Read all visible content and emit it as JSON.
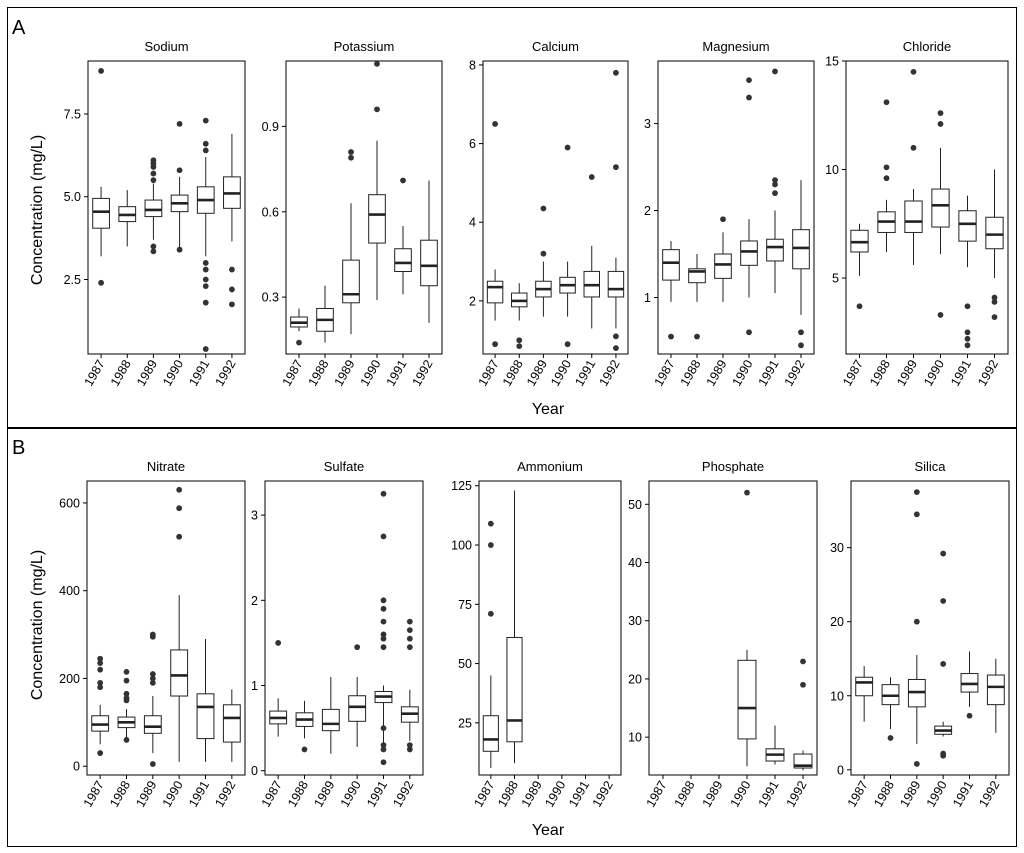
{
  "figure": {
    "panel_a_label": "A",
    "panel_b_label": "B",
    "ylabel": "Concentration (mg/L)",
    "xlabel": "Year"
  },
  "chart_data": [
    {
      "type": "boxplot",
      "panel": "A",
      "title": "Sodium",
      "categories": [
        "1987",
        "1988",
        "1989",
        "1990",
        "1991",
        "1992"
      ],
      "ylim": [
        0.25,
        9.1
      ],
      "yticks": [
        2.5,
        5.0,
        7.5
      ],
      "ytick_labels": [
        "2.5",
        "5.0",
        "7.5"
      ],
      "boxes": [
        {
          "min": 3.2,
          "q1": 4.05,
          "median": 4.55,
          "q3": 4.95,
          "max": 5.3,
          "outliers": [
            8.8,
            2.4
          ]
        },
        {
          "min": 3.5,
          "q1": 4.25,
          "median": 4.45,
          "q3": 4.7,
          "max": 5.2,
          "outliers": []
        },
        {
          "min": 3.7,
          "q1": 4.4,
          "median": 4.6,
          "q3": 4.9,
          "max": 5.4,
          "outliers": [
            6.1,
            6.0,
            5.9,
            5.7,
            5.5,
            3.5,
            3.35
          ]
        },
        {
          "min": 3.45,
          "q1": 4.55,
          "median": 4.8,
          "q3": 5.05,
          "max": 5.6,
          "outliers": [
            7.2,
            5.8,
            3.4
          ]
        },
        {
          "min": 3.2,
          "q1": 4.5,
          "median": 4.9,
          "q3": 5.3,
          "max": 6.2,
          "outliers": [
            7.3,
            6.6,
            6.4,
            3.0,
            2.8,
            2.5,
            2.3,
            1.8,
            0.4
          ]
        },
        {
          "min": 3.65,
          "q1": 4.65,
          "median": 5.1,
          "q3": 5.6,
          "max": 6.9,
          "outliers": [
            2.8,
            2.2,
            1.75
          ]
        }
      ]
    },
    {
      "type": "boxplot",
      "panel": "A",
      "title": "Potassium",
      "categories": [
        "1987",
        "1988",
        "1989",
        "1990",
        "1991",
        "1992"
      ],
      "ylim": [
        0.1,
        1.13
      ],
      "yticks": [
        0.3,
        0.6,
        0.9
      ],
      "ytick_labels": [
        "0.3",
        "0.6",
        "0.9"
      ],
      "boxes": [
        {
          "min": 0.18,
          "q1": 0.195,
          "median": 0.21,
          "q3": 0.23,
          "max": 0.26,
          "outliers": [
            0.14
          ]
        },
        {
          "min": 0.14,
          "q1": 0.18,
          "median": 0.22,
          "q3": 0.26,
          "max": 0.34,
          "outliers": []
        },
        {
          "min": 0.17,
          "q1": 0.28,
          "median": 0.31,
          "q3": 0.43,
          "max": 0.63,
          "outliers": [
            0.81,
            0.79
          ]
        },
        {
          "min": 0.29,
          "q1": 0.49,
          "median": 0.59,
          "q3": 0.66,
          "max": 0.85,
          "outliers": [
            1.12,
            0.96
          ]
        },
        {
          "min": 0.31,
          "q1": 0.39,
          "median": 0.42,
          "q3": 0.47,
          "max": 0.55,
          "outliers": [
            0.71
          ]
        },
        {
          "min": 0.21,
          "q1": 0.34,
          "median": 0.41,
          "q3": 0.5,
          "max": 0.71,
          "outliers": []
        }
      ]
    },
    {
      "type": "boxplot",
      "panel": "A",
      "title": "Calcium",
      "categories": [
        "1987",
        "1988",
        "1989",
        "1990",
        "1991",
        "1992"
      ],
      "ylim": [
        0.65,
        8.1
      ],
      "yticks": [
        2,
        4,
        6,
        8
      ],
      "ytick_labels": [
        "2",
        "4",
        "6",
        "8"
      ],
      "boxes": [
        {
          "min": 1.5,
          "q1": 1.95,
          "median": 2.35,
          "q3": 2.5,
          "max": 2.8,
          "outliers": [
            6.5,
            0.9
          ]
        },
        {
          "min": 1.5,
          "q1": 1.85,
          "median": 2.0,
          "q3": 2.2,
          "max": 2.45,
          "outliers": [
            1.0,
            0.85
          ]
        },
        {
          "min": 1.6,
          "q1": 2.1,
          "median": 2.3,
          "q3": 2.5,
          "max": 3.0,
          "outliers": [
            4.35,
            3.2
          ]
        },
        {
          "min": 1.6,
          "q1": 2.2,
          "median": 2.4,
          "q3": 2.6,
          "max": 3.0,
          "outliers": [
            5.9,
            0.9
          ]
        },
        {
          "min": 1.3,
          "q1": 2.1,
          "median": 2.4,
          "q3": 2.75,
          "max": 3.4,
          "outliers": [
            5.15
          ]
        },
        {
          "min": 1.3,
          "q1": 2.1,
          "median": 2.3,
          "q3": 2.75,
          "max": 3.1,
          "outliers": [
            7.8,
            5.4,
            1.1,
            0.8
          ]
        }
      ]
    },
    {
      "type": "boxplot",
      "panel": "A",
      "title": "Magnesium",
      "categories": [
        "1987",
        "1988",
        "1989",
        "1990",
        "1991",
        "1992"
      ],
      "ylim": [
        0.35,
        3.72
      ],
      "yticks": [
        1,
        2,
        3
      ],
      "ytick_labels": [
        "1",
        "2",
        "3"
      ],
      "boxes": [
        {
          "min": 0.95,
          "q1": 1.2,
          "median": 1.4,
          "q3": 1.55,
          "max": 1.65,
          "outliers": [
            0.55
          ]
        },
        {
          "min": 0.95,
          "q1": 1.17,
          "median": 1.3,
          "q3": 1.33,
          "max": 1.5,
          "outliers": [
            0.55
          ]
        },
        {
          "min": 0.95,
          "q1": 1.22,
          "median": 1.38,
          "q3": 1.5,
          "max": 1.75,
          "outliers": [
            1.9
          ]
        },
        {
          "min": 1.0,
          "q1": 1.37,
          "median": 1.53,
          "q3": 1.65,
          "max": 1.9,
          "outliers": [
            3.5,
            3.3,
            0.6
          ]
        },
        {
          "min": 1.05,
          "q1": 1.42,
          "median": 1.58,
          "q3": 1.67,
          "max": 2.0,
          "outliers": [
            3.6,
            2.35,
            2.3,
            2.2
          ]
        },
        {
          "min": 0.8,
          "q1": 1.33,
          "median": 1.57,
          "q3": 1.78,
          "max": 2.35,
          "outliers": [
            0.6,
            0.45
          ]
        }
      ]
    },
    {
      "type": "boxplot",
      "panel": "A",
      "title": "Chloride",
      "categories": [
        "1987",
        "1988",
        "1989",
        "1990",
        "1991",
        "1992"
      ],
      "ylim": [
        1.5,
        15.0
      ],
      "yticks": [
        5,
        10,
        15
      ],
      "ytick_labels": [
        "5",
        "10",
        "15"
      ],
      "boxes": [
        {
          "min": 5.1,
          "q1": 6.2,
          "median": 6.65,
          "q3": 7.2,
          "max": 7.5,
          "outliers": [
            3.7
          ]
        },
        {
          "min": 6.2,
          "q1": 7.1,
          "median": 7.6,
          "q3": 8.05,
          "max": 8.6,
          "outliers": [
            13.1,
            10.1,
            9.6
          ]
        },
        {
          "min": 5.6,
          "q1": 7.1,
          "median": 7.6,
          "q3": 8.55,
          "max": 9.1,
          "outliers": [
            14.5,
            11.0
          ]
        },
        {
          "min": 6.1,
          "q1": 7.35,
          "median": 8.35,
          "q3": 9.1,
          "max": 11.0,
          "outliers": [
            12.6,
            12.1,
            3.3
          ]
        },
        {
          "min": 5.5,
          "q1": 6.7,
          "median": 7.5,
          "q3": 8.1,
          "max": 8.8,
          "outliers": [
            3.7,
            2.5,
            2.2,
            1.9
          ]
        },
        {
          "min": 5.0,
          "q1": 6.35,
          "median": 7.0,
          "q3": 7.8,
          "max": 10.0,
          "outliers": [
            4.1,
            3.9,
            3.2
          ]
        }
      ]
    },
    {
      "type": "boxplot",
      "panel": "B",
      "title": "Nitrate",
      "categories": [
        "1987",
        "1988",
        "1989",
        "1990",
        "1991",
        "1992"
      ],
      "ylim": [
        -20,
        650
      ],
      "yticks": [
        0,
        200,
        400,
        600
      ],
      "ytick_labels": [
        "0",
        "200",
        "400",
        "600"
      ],
      "boxes": [
        {
          "min": 50,
          "q1": 80,
          "median": 95,
          "q3": 115,
          "max": 140,
          "outliers": [
            245,
            235,
            220,
            190,
            180,
            30
          ]
        },
        {
          "min": 65,
          "q1": 88,
          "median": 100,
          "q3": 112,
          "max": 130,
          "outliers": [
            215,
            195,
            165,
            155,
            150,
            60
          ]
        },
        {
          "min": 30,
          "q1": 75,
          "median": 90,
          "q3": 115,
          "max": 160,
          "outliers": [
            300,
            295,
            210,
            200,
            190,
            5
          ]
        },
        {
          "min": 10,
          "q1": 160,
          "median": 207,
          "q3": 265,
          "max": 390,
          "outliers": [
            630,
            588,
            523
          ]
        },
        {
          "min": 10,
          "q1": 63,
          "median": 135,
          "q3": 165,
          "max": 290,
          "outliers": []
        },
        {
          "min": 10,
          "q1": 55,
          "median": 110,
          "q3": 140,
          "max": 175,
          "outliers": []
        }
      ]
    },
    {
      "type": "boxplot",
      "panel": "B",
      "title": "Sulfate",
      "categories": [
        "1987",
        "1988",
        "1989",
        "1990",
        "1991",
        "1992"
      ],
      "ylim": [
        -0.05,
        3.4
      ],
      "yticks": [
        0,
        1,
        2,
        3
      ],
      "ytick_labels": [
        "0",
        "1",
        "2",
        "3"
      ],
      "boxes": [
        {
          "min": 0.4,
          "q1": 0.55,
          "median": 0.62,
          "q3": 0.7,
          "max": 0.85,
          "outliers": [
            1.5
          ]
        },
        {
          "min": 0.38,
          "q1": 0.52,
          "median": 0.6,
          "q3": 0.68,
          "max": 0.82,
          "outliers": [
            0.25
          ]
        },
        {
          "min": 0.2,
          "q1": 0.47,
          "median": 0.55,
          "q3": 0.72,
          "max": 1.1,
          "outliers": []
        },
        {
          "min": 0.28,
          "q1": 0.58,
          "median": 0.75,
          "q3": 0.88,
          "max": 1.1,
          "outliers": [
            1.45
          ]
        },
        {
          "min": 0.3,
          "q1": 0.8,
          "median": 0.87,
          "q3": 0.93,
          "max": 1.0,
          "outliers": [
            3.25,
            2.75,
            2.0,
            1.9,
            1.75,
            1.6,
            1.55,
            1.45,
            0.5,
            0.3,
            0.25,
            0.1
          ]
        },
        {
          "min": 0.35,
          "q1": 0.57,
          "median": 0.67,
          "q3": 0.75,
          "max": 0.95,
          "outliers": [
            1.75,
            1.65,
            1.55,
            1.45,
            0.3,
            0.25
          ]
        }
      ]
    },
    {
      "type": "boxplot",
      "panel": "B",
      "title": "Ammonium",
      "categories": [
        "1987",
        "1988",
        "1989",
        "1990",
        "1991",
        "1992"
      ],
      "ylim": [
        3,
        127
      ],
      "yticks": [
        25,
        50,
        75,
        100,
        125
      ],
      "ytick_labels": [
        "25",
        "50",
        "75",
        "100",
        "125"
      ],
      "boxes": [
        {
          "min": 6,
          "q1": 13,
          "median": 18,
          "q3": 28,
          "max": 45,
          "outliers": [
            109,
            100,
            71
          ]
        },
        {
          "min": 8,
          "q1": 17,
          "median": 26,
          "q3": 61,
          "max": 123,
          "outliers": []
        },
        null,
        null,
        null,
        null
      ]
    },
    {
      "type": "boxplot",
      "panel": "B",
      "title": "Phosphate",
      "categories": [
        "1987",
        "1988",
        "1989",
        "1990",
        "1991",
        "1992"
      ],
      "ylim": [
        3.5,
        54
      ],
      "yticks": [
        10,
        20,
        30,
        40,
        50
      ],
      "ytick_labels": [
        "10",
        "20",
        "30",
        "40",
        "50"
      ],
      "boxes": [
        null,
        null,
        null,
        {
          "min": 5,
          "q1": 9.7,
          "median": 15,
          "q3": 23.2,
          "max": 25,
          "outliers": [
            52
          ]
        },
        {
          "min": 5.3,
          "q1": 5.9,
          "median": 7,
          "q3": 8,
          "max": 12,
          "outliers": []
        },
        {
          "min": 4.3,
          "q1": 4.7,
          "median": 5.1,
          "q3": 7.1,
          "max": 7.7,
          "outliers": [
            23,
            19
          ]
        }
      ]
    },
    {
      "type": "boxplot",
      "panel": "B",
      "title": "Silica",
      "categories": [
        "1987",
        "1988",
        "1989",
        "1990",
        "1991",
        "1992"
      ],
      "ylim": [
        -0.7,
        39
      ],
      "yticks": [
        0,
        10,
        20,
        30
      ],
      "ytick_labels": [
        "0",
        "10",
        "20",
        "30"
      ],
      "boxes": [
        {
          "min": 6.5,
          "q1": 10,
          "median": 11.8,
          "q3": 12.5,
          "max": 14,
          "outliers": []
        },
        {
          "min": 5.5,
          "q1": 8.8,
          "median": 10,
          "q3": 11.5,
          "max": 12.5,
          "outliers": [
            4.3
          ]
        },
        {
          "min": 3.5,
          "q1": 8.5,
          "median": 10.5,
          "q3": 12.2,
          "max": 15.5,
          "outliers": [
            37.5,
            34.5,
            20,
            0.8
          ]
        },
        {
          "min": 4.5,
          "q1": 4.8,
          "median": 5.3,
          "q3": 5.9,
          "max": 6.5,
          "outliers": [
            29.2,
            22.8,
            14.3,
            2.2,
            1.9
          ]
        },
        {
          "min": 8.5,
          "q1": 10.5,
          "median": 11.6,
          "q3": 13,
          "max": 16,
          "outliers": [
            7.3
          ]
        },
        {
          "min": 5,
          "q1": 8.8,
          "median": 11.2,
          "q3": 12.8,
          "max": 15,
          "outliers": []
        }
      ]
    }
  ]
}
